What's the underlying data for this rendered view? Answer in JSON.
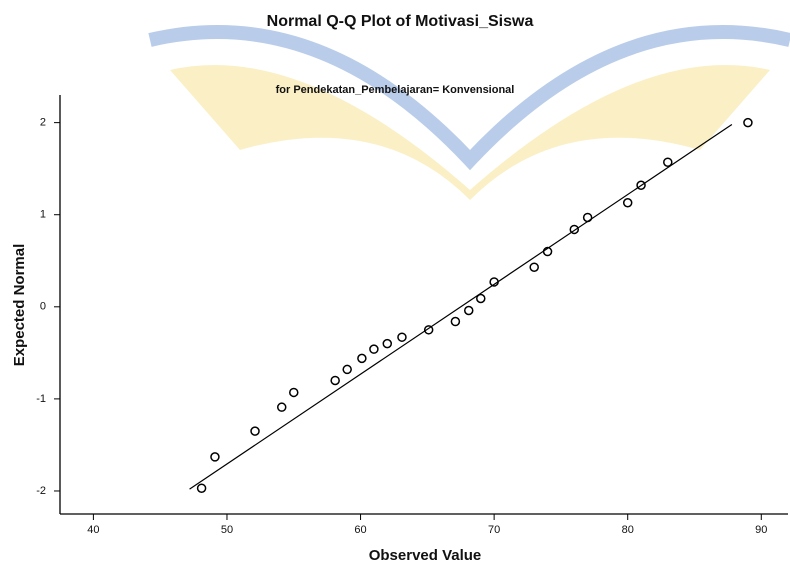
{
  "chart_data": {
    "type": "scatter",
    "title": "Normal Q-Q Plot of Motivasi_Siswa",
    "subtitle": "for Pendekatan_Pembelajaran= Konvensional",
    "x_label": "Observed Value",
    "y_label": "Expected Normal",
    "x": [
      48.1,
      49.1,
      52.1,
      54.1,
      55,
      58.1,
      59,
      60.1,
      61,
      62,
      63.1,
      65.1,
      67.1,
      68.1,
      69,
      70,
      73,
      74,
      76,
      77,
      80,
      81,
      83,
      89
    ],
    "values": [
      -1.97,
      -1.63,
      -1.35,
      -1.09,
      -0.93,
      -0.8,
      -0.68,
      -0.56,
      -0.46,
      -0.4,
      -0.33,
      -0.25,
      -0.16,
      -0.04,
      0.09,
      0.27,
      0.43,
      0.6,
      0.84,
      0.97,
      1.13,
      1.32,
      1.57,
      2.0
    ],
    "color": "#000000",
    "reference_line": {
      "x": [
        47.2,
        87.8
      ],
      "y": [
        -1.98,
        1.98
      ]
    },
    "xlim": [
      37.5,
      92
    ],
    "ylim": [
      -2.25,
      2.3
    ],
    "xticks": [
      40,
      50,
      60,
      70,
      80,
      90
    ],
    "yticks": [
      -2,
      -1,
      0,
      1,
      2
    ]
  }
}
